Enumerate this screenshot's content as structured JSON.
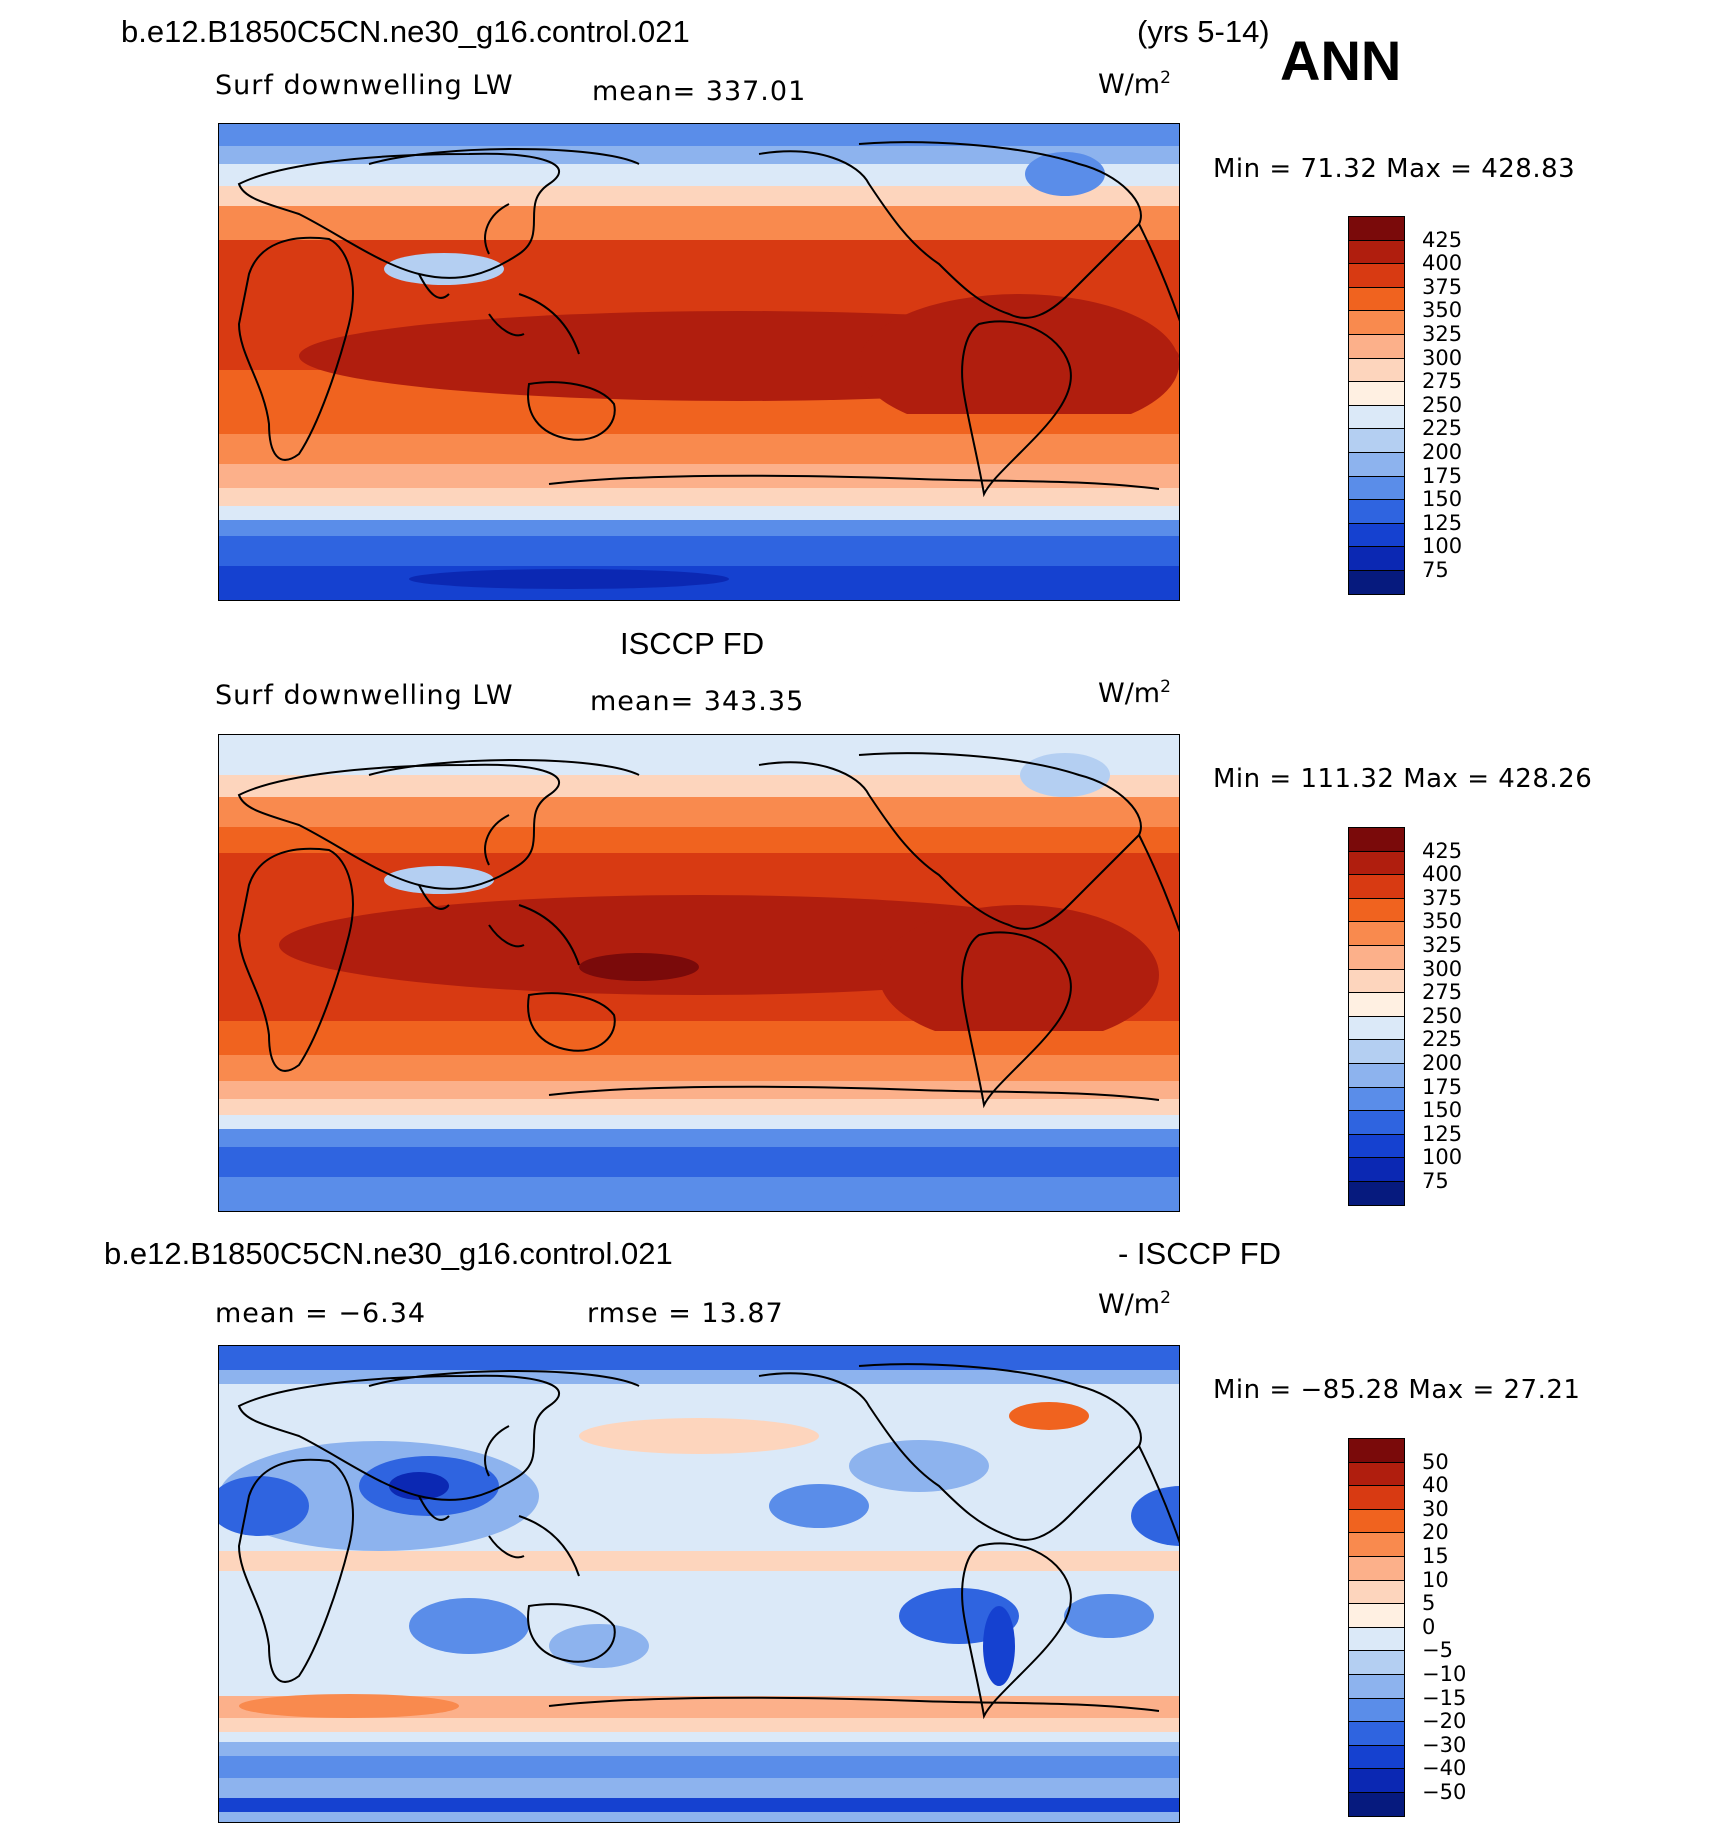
{
  "header": {
    "case_title": "b.e12.B1850C5CN.ne30_g16.control.021",
    "years": "(yrs 5-14)",
    "season": "ANN"
  },
  "panels": [
    {
      "title": "",
      "variable": "Surf downwelling LW",
      "stat": "mean= 337.01",
      "units": "W/m",
      "units_sup": "2",
      "minmax": "Min =  71.32 Max = 428.83",
      "scale_labels": [
        "425",
        "400",
        "375",
        "350",
        "325",
        "300",
        "275",
        "250",
        "225",
        "200",
        "175",
        "150",
        "125",
        "100",
        "75"
      ],
      "colors": [
        "#7a0a0a",
        "#b01e0e",
        "#d83a12",
        "#f0631f",
        "#f98a4e",
        "#fcb08a",
        "#fdd5bd",
        "#fff0e2",
        "#dbe9f8",
        "#b4cff2",
        "#8db3ee",
        "#5a8de9",
        "#2f64e0",
        "#1541d0",
        "#0b28b3",
        "#061a7e"
      ]
    },
    {
      "title": "ISCCP FD",
      "variable": "Surf downwelling LW",
      "stat": "mean= 343.35",
      "units": "W/m",
      "units_sup": "2",
      "minmax": "Min = 111.32 Max = 428.26",
      "scale_labels": [
        "425",
        "400",
        "375",
        "350",
        "325",
        "300",
        "275",
        "250",
        "225",
        "200",
        "175",
        "150",
        "125",
        "100",
        "75"
      ],
      "colors": [
        "#7a0a0a",
        "#b01e0e",
        "#d83a12",
        "#f0631f",
        "#f98a4e",
        "#fcb08a",
        "#fdd5bd",
        "#fff0e2",
        "#dbe9f8",
        "#b4cff2",
        "#8db3ee",
        "#5a8de9",
        "#2f64e0",
        "#1541d0",
        "#0b28b3",
        "#061a7e"
      ]
    },
    {
      "title": "b.e12.B1850C5CN.ne30_g16.control.021",
      "title_right": "- ISCCP FD",
      "variable": "mean =  −6.34",
      "stat": "rmse =  13.87",
      "units": "W/m",
      "units_sup": "2",
      "minmax": "Min = −85.28 Max =  27.21",
      "scale_labels": [
        "50",
        "40",
        "30",
        "20",
        "15",
        "10",
        "5",
        "0",
        "−5",
        "−10",
        "−15",
        "−20",
        "−30",
        "−40",
        "−50"
      ],
      "colors": [
        "#7a0a0a",
        "#b01e0e",
        "#d83a12",
        "#f0631f",
        "#f98a4e",
        "#fcb08a",
        "#fdd5bd",
        "#fff0e2",
        "#dbe9f8",
        "#b4cff2",
        "#8db3ee",
        "#5a8de9",
        "#2f64e0",
        "#1541d0",
        "#0b28b3",
        "#061a7e"
      ]
    }
  ]
}
